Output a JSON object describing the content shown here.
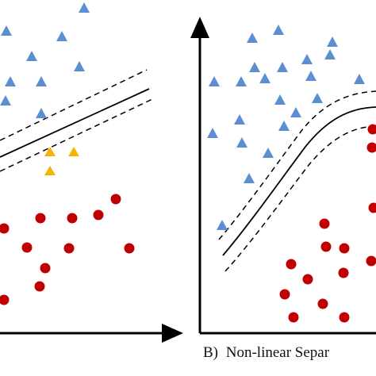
{
  "panel_b": {
    "label": "B)",
    "caption": "Non-linear Separ"
  },
  "colors": {
    "triangle_blue": "#5b8fd1",
    "triangle_yellow": "#f4b400",
    "circle_red": "#c00000",
    "line": "#000000"
  }
}
